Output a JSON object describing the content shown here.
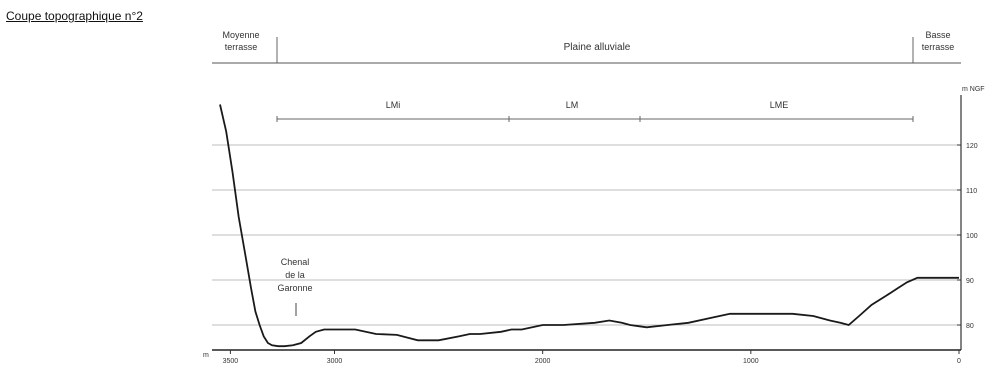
{
  "title": "Coupe topographique n°2",
  "zones": {
    "left": [
      "Moyenne",
      "terrasse"
    ],
    "center": "Plaine alluviale",
    "right": [
      "Basse",
      "terrasse"
    ]
  },
  "units": {
    "left": "m",
    "right": "m NGF"
  },
  "subzones": [
    "LMi",
    "LM",
    "LME"
  ],
  "annotation": [
    "Chenal",
    "de la",
    "Garonne"
  ],
  "chart_data": {
    "type": "line",
    "xlabel": "m",
    "ylabel": "m NGF",
    "x_reversed": true,
    "xlim": [
      3550,
      0
    ],
    "ylim": [
      75,
      130
    ],
    "x_ticks": [
      3500,
      3000,
      2000,
      1000,
      0
    ],
    "x_tick_labels": [
      "3500",
      "3000",
      "2000",
      "1000",
      "0"
    ],
    "y_ticks": [
      80,
      90,
      100,
      110,
      120
    ],
    "y_tick_labels": [
      "80",
      "90",
      "100",
      "110",
      "120"
    ],
    "grid": true,
    "series": [
      {
        "x": [
          3550,
          3520,
          3490,
          3460,
          3430,
          3400,
          3380,
          3360,
          3340,
          3320,
          3300,
          3270,
          3240,
          3200,
          3160,
          3120,
          3090,
          3050,
          3000,
          2900,
          2800,
          2700,
          2650,
          2600,
          2550,
          2500,
          2400,
          2350,
          2300,
          2200,
          2150,
          2100,
          2000,
          1900,
          1750,
          1680,
          1620,
          1580,
          1500,
          1400,
          1300,
          1200,
          1100,
          1000,
          900,
          800,
          700,
          620,
          570,
          530,
          480,
          420,
          350,
          300,
          250,
          200,
          100,
          0
        ],
        "y": [
          129,
          123,
          114,
          104,
          96,
          88,
          83,
          80,
          77.5,
          76,
          75.5,
          75.3,
          75.3,
          75.5,
          76,
          77.5,
          78.5,
          79,
          79,
          79,
          78,
          77.8,
          77.2,
          76.6,
          76.6,
          76.6,
          77.5,
          78,
          78,
          78.5,
          79,
          79,
          80,
          80,
          80.5,
          81,
          80.5,
          80,
          79.5,
          80,
          80.5,
          81.5,
          82.5,
          82.5,
          82.5,
          82.5,
          82,
          81,
          80.5,
          80,
          82,
          84.5,
          86.5,
          88,
          89.5,
          90.5,
          90.5,
          90.5
        ]
      }
    ]
  }
}
